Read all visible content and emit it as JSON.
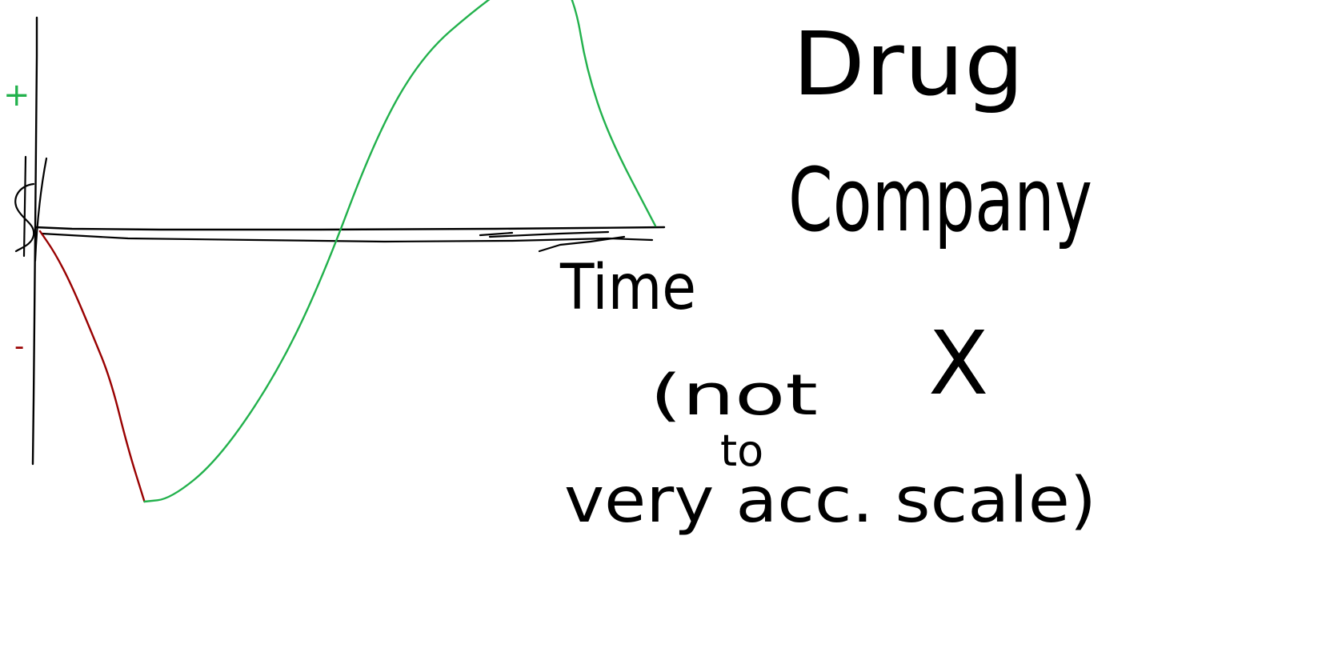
{
  "colors": {
    "ink": "#000000",
    "positive": "#22b14c",
    "negative": "#990000",
    "background": "#ffffff"
  },
  "chart_data": {
    "type": "line",
    "title": "",
    "xlabel": "Time",
    "ylabel": "$",
    "axis_marks": {
      "positive": "+",
      "negative": "-"
    },
    "series": [
      {
        "color": "#990000",
        "x": [
          0,
          0.08,
          0.17,
          0.28,
          0.38,
          0.47,
          0.56
        ],
        "y": [
          0,
          -0.08,
          -0.2,
          -0.38,
          -0.55,
          -0.8,
          -1.0
        ]
      },
      {
        "color": "#22b14c",
        "x": [
          0.56,
          0.7,
          0.95,
          1.25,
          1.5,
          1.8,
          2.05,
          2.35,
          2.6,
          2.75,
          2.87,
          2.93,
          3.05,
          3.3
        ],
        "y": [
          -1.0,
          -0.99,
          -0.85,
          -0.55,
          -0.2,
          0.35,
          0.65,
          0.83,
          0.95,
          0.99,
          0.85,
          0.6,
          0.35,
          0.02
        ]
      }
    ],
    "annotations": {
      "title_lines": [
        "Drug",
        "Company",
        "X"
      ],
      "note_lines": [
        "(not",
        "to",
        "very acc. scale)"
      ]
    },
    "grid": false,
    "legend": "none"
  }
}
